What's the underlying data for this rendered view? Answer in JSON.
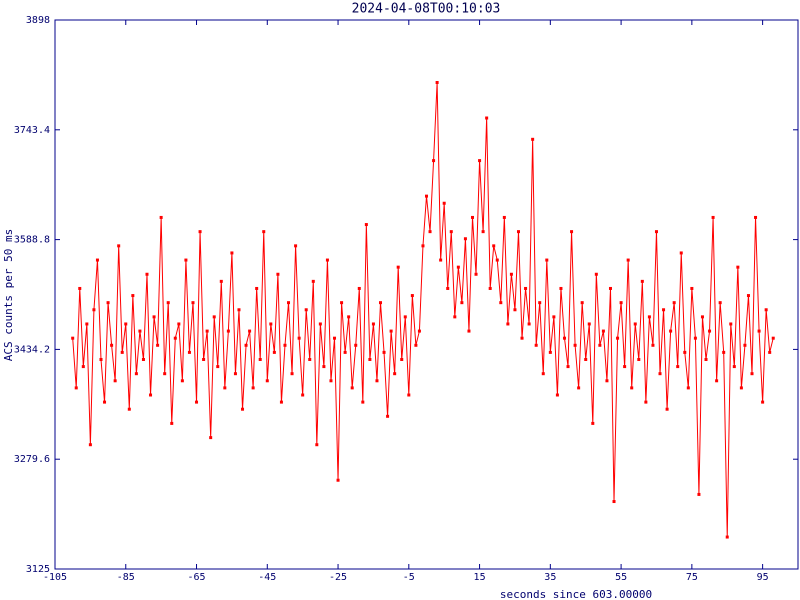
{
  "chart_data": {
    "type": "line",
    "title": "2024-04-08T00:10:03",
    "x_label": "seconds since 603.00000",
    "y_label": "ACS counts per 50 ms",
    "color": "#ff0000",
    "xlim": [
      -105,
      105
    ],
    "xticks": [
      -105,
      -85,
      -65,
      -45,
      -25,
      -5,
      15,
      35,
      55,
      75,
      95
    ],
    "ylim": [
      3125,
      3898
    ],
    "yticks": [
      3125,
      3279.6,
      3434.2,
      3588.8,
      3743.4,
      3898
    ],
    "x": [
      -100,
      -99,
      -98,
      -97,
      -96,
      -95,
      -94,
      -93,
      -92,
      -91,
      -90,
      -89,
      -88,
      -87,
      -86,
      -85,
      -84,
      -83,
      -82,
      -81,
      -80,
      -79,
      -78,
      -77,
      -76,
      -75,
      -74,
      -73,
      -72,
      -71,
      -70,
      -69,
      -68,
      -67,
      -66,
      -65,
      -64,
      -63,
      -62,
      -61,
      -60,
      -59,
      -58,
      -57,
      -56,
      -55,
      -54,
      -53,
      -52,
      -51,
      -50,
      -49,
      -48,
      -47,
      -46,
      -45,
      -44,
      -43,
      -42,
      -41,
      -40,
      -39,
      -38,
      -37,
      -36,
      -35,
      -34,
      -33,
      -32,
      -31,
      -30,
      -29,
      -28,
      -27,
      -26,
      -25,
      -24,
      -23,
      -22,
      -21,
      -20,
      -19,
      -18,
      -17,
      -16,
      -15,
      -14,
      -13,
      -12,
      -11,
      -10,
      -9,
      -8,
      -7,
      -6,
      -5,
      -4,
      -3,
      -2,
      -1,
      0,
      1,
      2,
      3,
      4,
      5,
      6,
      7,
      8,
      9,
      10,
      11,
      12,
      13,
      14,
      15,
      16,
      17,
      18,
      19,
      20,
      21,
      22,
      23,
      24,
      25,
      26,
      27,
      28,
      29,
      30,
      31,
      32,
      33,
      34,
      35,
      36,
      37,
      38,
      39,
      40,
      41,
      42,
      43,
      44,
      45,
      46,
      47,
      48,
      49,
      50,
      51,
      52,
      53,
      54,
      55,
      56,
      57,
      58,
      59,
      60,
      61,
      62,
      63,
      64,
      65,
      66,
      67,
      68,
      69,
      70,
      71,
      72,
      73,
      74,
      75,
      76,
      77,
      78,
      79,
      80,
      81,
      82,
      83,
      84,
      85,
      86,
      87,
      88,
      89,
      90,
      91,
      92,
      93,
      94,
      95,
      96,
      97,
      98
    ],
    "values": [
      3450,
      3380,
      3520,
      3410,
      3470,
      3300,
      3490,
      3560,
      3420,
      3360,
      3500,
      3440,
      3390,
      3580,
      3430,
      3470,
      3350,
      3510,
      3400,
      3460,
      3420,
      3540,
      3370,
      3480,
      3440,
      3620,
      3400,
      3500,
      3330,
      3450,
      3470,
      3390,
      3560,
      3430,
      3500,
      3360,
      3600,
      3420,
      3460,
      3310,
      3480,
      3410,
      3530,
      3380,
      3460,
      3570,
      3400,
      3490,
      3350,
      3440,
      3460,
      3380,
      3520,
      3420,
      3600,
      3390,
      3470,
      3430,
      3540,
      3360,
      3440,
      3500,
      3400,
      3580,
      3450,
      3370,
      3490,
      3420,
      3530,
      3300,
      3470,
      3410,
      3560,
      3390,
      3450,
      3250,
      3500,
      3430,
      3480,
      3380,
      3440,
      3520,
      3360,
      3610,
      3420,
      3470,
      3390,
      3500,
      3430,
      3340,
      3460,
      3400,
      3550,
      3420,
      3480,
      3370,
      3510,
      3440,
      3460,
      3580,
      3650,
      3600,
      3700,
      3810,
      3560,
      3640,
      3520,
      3600,
      3480,
      3550,
      3500,
      3590,
      3460,
      3620,
      3540,
      3700,
      3600,
      3760,
      3520,
      3580,
      3560,
      3500,
      3620,
      3470,
      3540,
      3490,
      3600,
      3450,
      3520,
      3470,
      3730,
      3440,
      3500,
      3400,
      3560,
      3430,
      3480,
      3370,
      3520,
      3450,
      3410,
      3600,
      3440,
      3380,
      3500,
      3420,
      3470,
      3330,
      3540,
      3440,
      3460,
      3390,
      3520,
      3220,
      3450,
      3500,
      3410,
      3560,
      3380,
      3470,
      3420,
      3530,
      3360,
      3480,
      3440,
      3600,
      3400,
      3490,
      3350,
      3460,
      3500,
      3410,
      3570,
      3430,
      3380,
      3520,
      3450,
      3230,
      3480,
      3420,
      3460,
      3620,
      3390,
      3500,
      3430,
      3170,
      3470,
      3410,
      3550,
      3380,
      3440,
      3510,
      3400,
      3620,
      3460,
      3360,
      3490,
      3430,
      3450
    ]
  }
}
